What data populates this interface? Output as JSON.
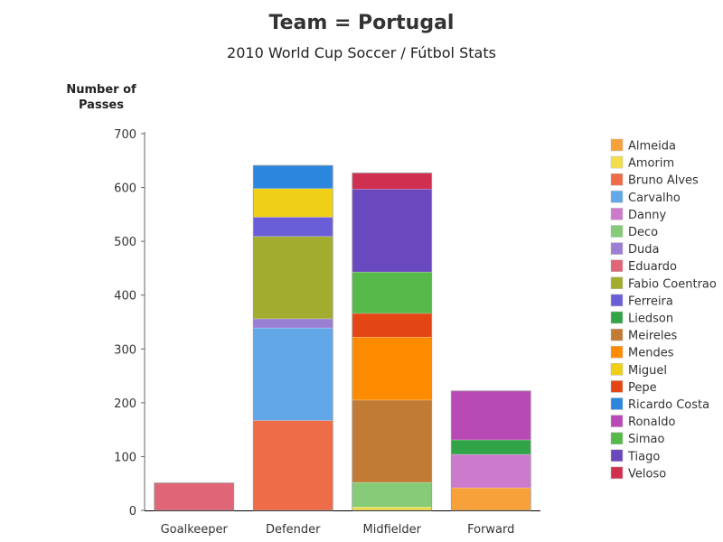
{
  "chart_data": {
    "type": "bar",
    "stacked": true,
    "title": "Team = Portugal",
    "subtitle": "2010 World Cup Soccer / Fútbol Stats",
    "ylabel_lines": [
      "Number of",
      "Passes"
    ],
    "xlabel": "",
    "ylim": [
      0,
      700
    ],
    "yticks": [
      0,
      100,
      200,
      300,
      400,
      500,
      600,
      700
    ],
    "categories": [
      "Goalkeeper",
      "Defender",
      "Midfielder",
      "Forward"
    ],
    "legend_position": "right",
    "series": [
      {
        "name": "Almeida",
        "color": "#f7a13b",
        "values": [
          0,
          0,
          0,
          42
        ]
      },
      {
        "name": "Amorim",
        "color": "#f2de4a",
        "values": [
          0,
          0,
          6,
          0
        ]
      },
      {
        "name": "Bruno Alves",
        "color": "#ef6c48",
        "values": [
          0,
          167,
          0,
          0
        ]
      },
      {
        "name": "Carvalho",
        "color": "#62a8e8",
        "values": [
          0,
          172,
          0,
          0
        ]
      },
      {
        "name": "Danny",
        "color": "#cc7acb",
        "values": [
          0,
          0,
          0,
          62
        ]
      },
      {
        "name": "Deco",
        "color": "#86cc78",
        "values": [
          0,
          0,
          46,
          0
        ]
      },
      {
        "name": "Duda",
        "color": "#9a7fd4",
        "values": [
          0,
          17,
          0,
          0
        ]
      },
      {
        "name": "Eduardo",
        "color": "#e06577",
        "values": [
          51,
          0,
          0,
          0
        ]
      },
      {
        "name": "Fabio Coentrao",
        "color": "#a2ad30",
        "values": [
          0,
          153,
          0,
          0
        ]
      },
      {
        "name": "Ferreira",
        "color": "#6a5ed8",
        "values": [
          0,
          36,
          0,
          0
        ]
      },
      {
        "name": "Liedson",
        "color": "#32a448",
        "values": [
          0,
          0,
          0,
          27
        ]
      },
      {
        "name": "Meireles",
        "color": "#c27b35",
        "values": [
          0,
          0,
          153,
          0
        ]
      },
      {
        "name": "Mendes",
        "color": "#ff8c00",
        "values": [
          0,
          0,
          117,
          0
        ]
      },
      {
        "name": "Miguel",
        "color": "#f0d017",
        "values": [
          0,
          53,
          0,
          0
        ]
      },
      {
        "name": "Pepe",
        "color": "#e44514",
        "values": [
          0,
          0,
          44,
          0
        ]
      },
      {
        "name": "Ricardo Costa",
        "color": "#2b86de",
        "values": [
          0,
          43,
          0,
          0
        ]
      },
      {
        "name": "Ronaldo",
        "color": "#b84ab5",
        "values": [
          0,
          0,
          0,
          91
        ]
      },
      {
        "name": "Simao",
        "color": "#56b94a",
        "values": [
          0,
          0,
          77,
          0
        ]
      },
      {
        "name": "Tiago",
        "color": "#6a48be",
        "values": [
          0,
          0,
          154,
          0
        ]
      },
      {
        "name": "Veloso",
        "color": "#d03050",
        "values": [
          0,
          0,
          30,
          0
        ]
      }
    ]
  }
}
